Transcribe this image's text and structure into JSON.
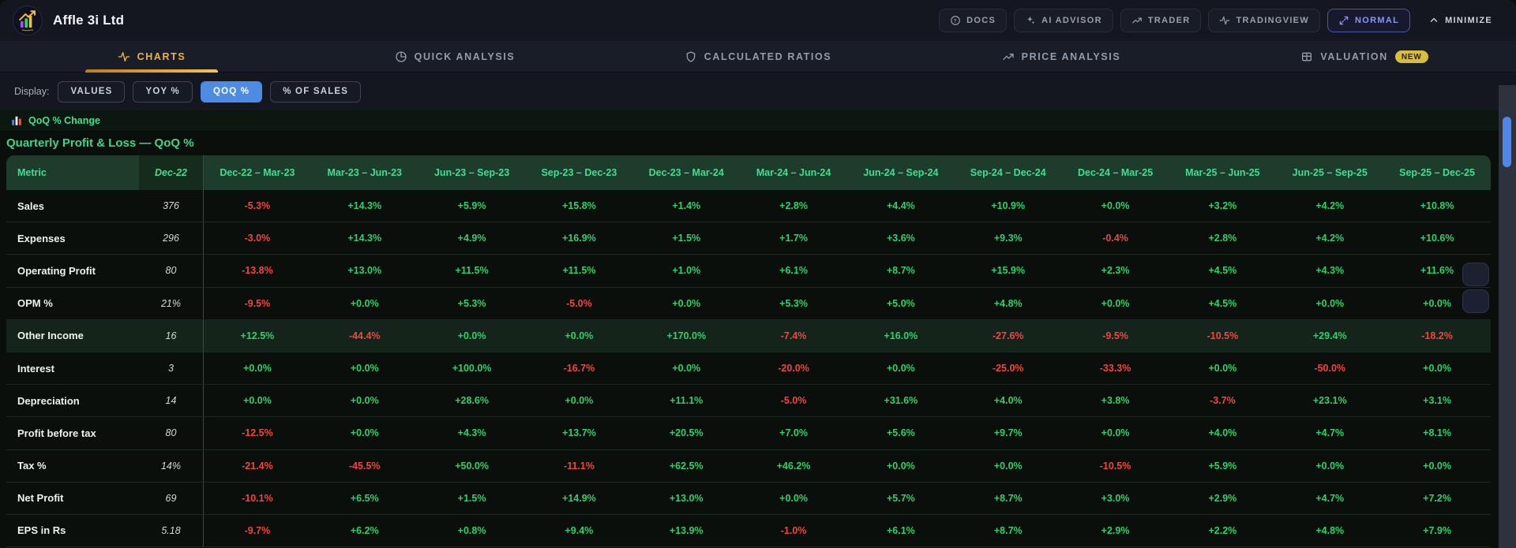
{
  "header": {
    "company": "Affle 3i Ltd",
    "nav": [
      {
        "label": "DOCS",
        "icon": "help-icon",
        "style": "default"
      },
      {
        "label": "AI ADVISOR",
        "icon": "sparkles-icon",
        "style": "default"
      },
      {
        "label": "TRADER",
        "icon": "trend-up-icon",
        "style": "default"
      },
      {
        "label": "TRADINGVIEW",
        "icon": "pulse-icon",
        "style": "default"
      },
      {
        "label": "NORMAL",
        "icon": "expand-icon",
        "style": "accent"
      },
      {
        "label": "MINIMIZE",
        "icon": "chevron-up-icon",
        "style": "plain"
      }
    ]
  },
  "tabs": [
    {
      "label": "CHARTS",
      "icon": "pulse-icon",
      "active": true,
      "badge": ""
    },
    {
      "label": "QUICK ANALYSIS",
      "icon": "pie-icon",
      "active": false,
      "badge": ""
    },
    {
      "label": "CALCULATED RATIOS",
      "icon": "shield-icon",
      "active": false,
      "badge": ""
    },
    {
      "label": "PRICE ANALYSIS",
      "icon": "trend-up-icon",
      "active": false,
      "badge": ""
    },
    {
      "label": "VALUATION",
      "icon": "grid-icon",
      "active": false,
      "badge": "NEW"
    }
  ],
  "display": {
    "label": "Display:",
    "options": [
      {
        "label": "VALUES",
        "active": false
      },
      {
        "label": "YOY %",
        "active": false
      },
      {
        "label": "QOQ %",
        "active": true
      },
      {
        "label": "% OF SALES",
        "active": false
      }
    ]
  },
  "banner": {
    "icon": "bar-chart-icon",
    "label": "QoQ % Change"
  },
  "section_title": "Quarterly Profit & Loss — QoQ %",
  "table": {
    "metric_header": "Metric",
    "base_header": "Dec-22",
    "period_headers": [
      "Dec-22 – Mar-23",
      "Mar-23 – Jun-23",
      "Jun-23 – Sep-23",
      "Sep-23 – Dec-23",
      "Dec-23 – Mar-24",
      "Mar-24 – Jun-24",
      "Jun-24 – Sep-24",
      "Sep-24 – Dec-24",
      "Dec-24 – Mar-25",
      "Mar-25 – Jun-25",
      "Jun-25 – Sep-25",
      "Sep-25 – Dec-25"
    ],
    "rows": [
      {
        "metric": "Sales",
        "base": "376",
        "highlight": false,
        "values": [
          "-5.3%",
          "+14.3%",
          "+5.9%",
          "+15.8%",
          "+1.4%",
          "+2.8%",
          "+4.4%",
          "+10.9%",
          "+0.0%",
          "+3.2%",
          "+4.2%",
          "+10.8%"
        ]
      },
      {
        "metric": "Expenses",
        "base": "296",
        "highlight": false,
        "values": [
          "-3.0%",
          "+14.3%",
          "+4.9%",
          "+16.9%",
          "+1.5%",
          "+1.7%",
          "+3.6%",
          "+9.3%",
          "-0.4%",
          "+2.8%",
          "+4.2%",
          "+10.6%"
        ]
      },
      {
        "metric": "Operating Profit",
        "base": "80",
        "highlight": false,
        "values": [
          "-13.8%",
          "+13.0%",
          "+11.5%",
          "+11.5%",
          "+1.0%",
          "+6.1%",
          "+8.7%",
          "+15.9%",
          "+2.3%",
          "+4.5%",
          "+4.3%",
          "+11.6%"
        ]
      },
      {
        "metric": "OPM %",
        "base": "21%",
        "highlight": false,
        "values": [
          "-9.5%",
          "+0.0%",
          "+5.3%",
          "-5.0%",
          "+0.0%",
          "+5.3%",
          "+5.0%",
          "+4.8%",
          "+0.0%",
          "+4.5%",
          "+0.0%",
          "+0.0%"
        ]
      },
      {
        "metric": "Other Income",
        "base": "16",
        "highlight": true,
        "values": [
          "+12.5%",
          "-44.4%",
          "+0.0%",
          "+0.0%",
          "+170.0%",
          "-7.4%",
          "+16.0%",
          "-27.6%",
          "-9.5%",
          "-10.5%",
          "+29.4%",
          "-18.2%"
        ]
      },
      {
        "metric": "Interest",
        "base": "3",
        "highlight": false,
        "values": [
          "+0.0%",
          "+0.0%",
          "+100.0%",
          "-16.7%",
          "+0.0%",
          "-20.0%",
          "+0.0%",
          "-25.0%",
          "-33.3%",
          "+0.0%",
          "-50.0%",
          "+0.0%"
        ]
      },
      {
        "metric": "Depreciation",
        "base": "14",
        "highlight": false,
        "values": [
          "+0.0%",
          "+0.0%",
          "+28.6%",
          "+0.0%",
          "+11.1%",
          "-5.0%",
          "+31.6%",
          "+4.0%",
          "+3.8%",
          "-3.7%",
          "+23.1%",
          "+3.1%"
        ]
      },
      {
        "metric": "Profit before tax",
        "base": "80",
        "highlight": false,
        "values": [
          "-12.5%",
          "+0.0%",
          "+4.3%",
          "+13.7%",
          "+20.5%",
          "+7.0%",
          "+5.6%",
          "+9.7%",
          "+0.0%",
          "+4.0%",
          "+4.7%",
          "+8.1%"
        ]
      },
      {
        "metric": "Tax %",
        "base": "14%",
        "highlight": false,
        "values": [
          "-21.4%",
          "-45.5%",
          "+50.0%",
          "-11.1%",
          "+62.5%",
          "+46.2%",
          "+0.0%",
          "+0.0%",
          "-10.5%",
          "+5.9%",
          "+0.0%",
          "+0.0%"
        ]
      },
      {
        "metric": "Net Profit",
        "base": "69",
        "highlight": false,
        "values": [
          "-10.1%",
          "+6.5%",
          "+1.5%",
          "+14.9%",
          "+13.0%",
          "+0.0%",
          "+5.7%",
          "+8.7%",
          "+3.0%",
          "+2.9%",
          "+4.7%",
          "+7.2%"
        ]
      },
      {
        "metric": "EPS in Rs",
        "base": "5.18",
        "highlight": false,
        "values": [
          "-9.7%",
          "+6.2%",
          "+0.8%",
          "+9.4%",
          "+13.9%",
          "-1.0%",
          "+6.1%",
          "+8.7%",
          "+2.9%",
          "+2.2%",
          "+4.8%",
          "+7.9%"
        ]
      }
    ]
  },
  "colors": {
    "positive": "#28d36c",
    "negative": "#f2453e",
    "accent_gold": "#f1b33c",
    "accent_blue": "#4d8ce2",
    "accent_indigo": "#8b95f7",
    "header_green": "#41dd92",
    "scroll_thumb": "#4f86ea"
  }
}
